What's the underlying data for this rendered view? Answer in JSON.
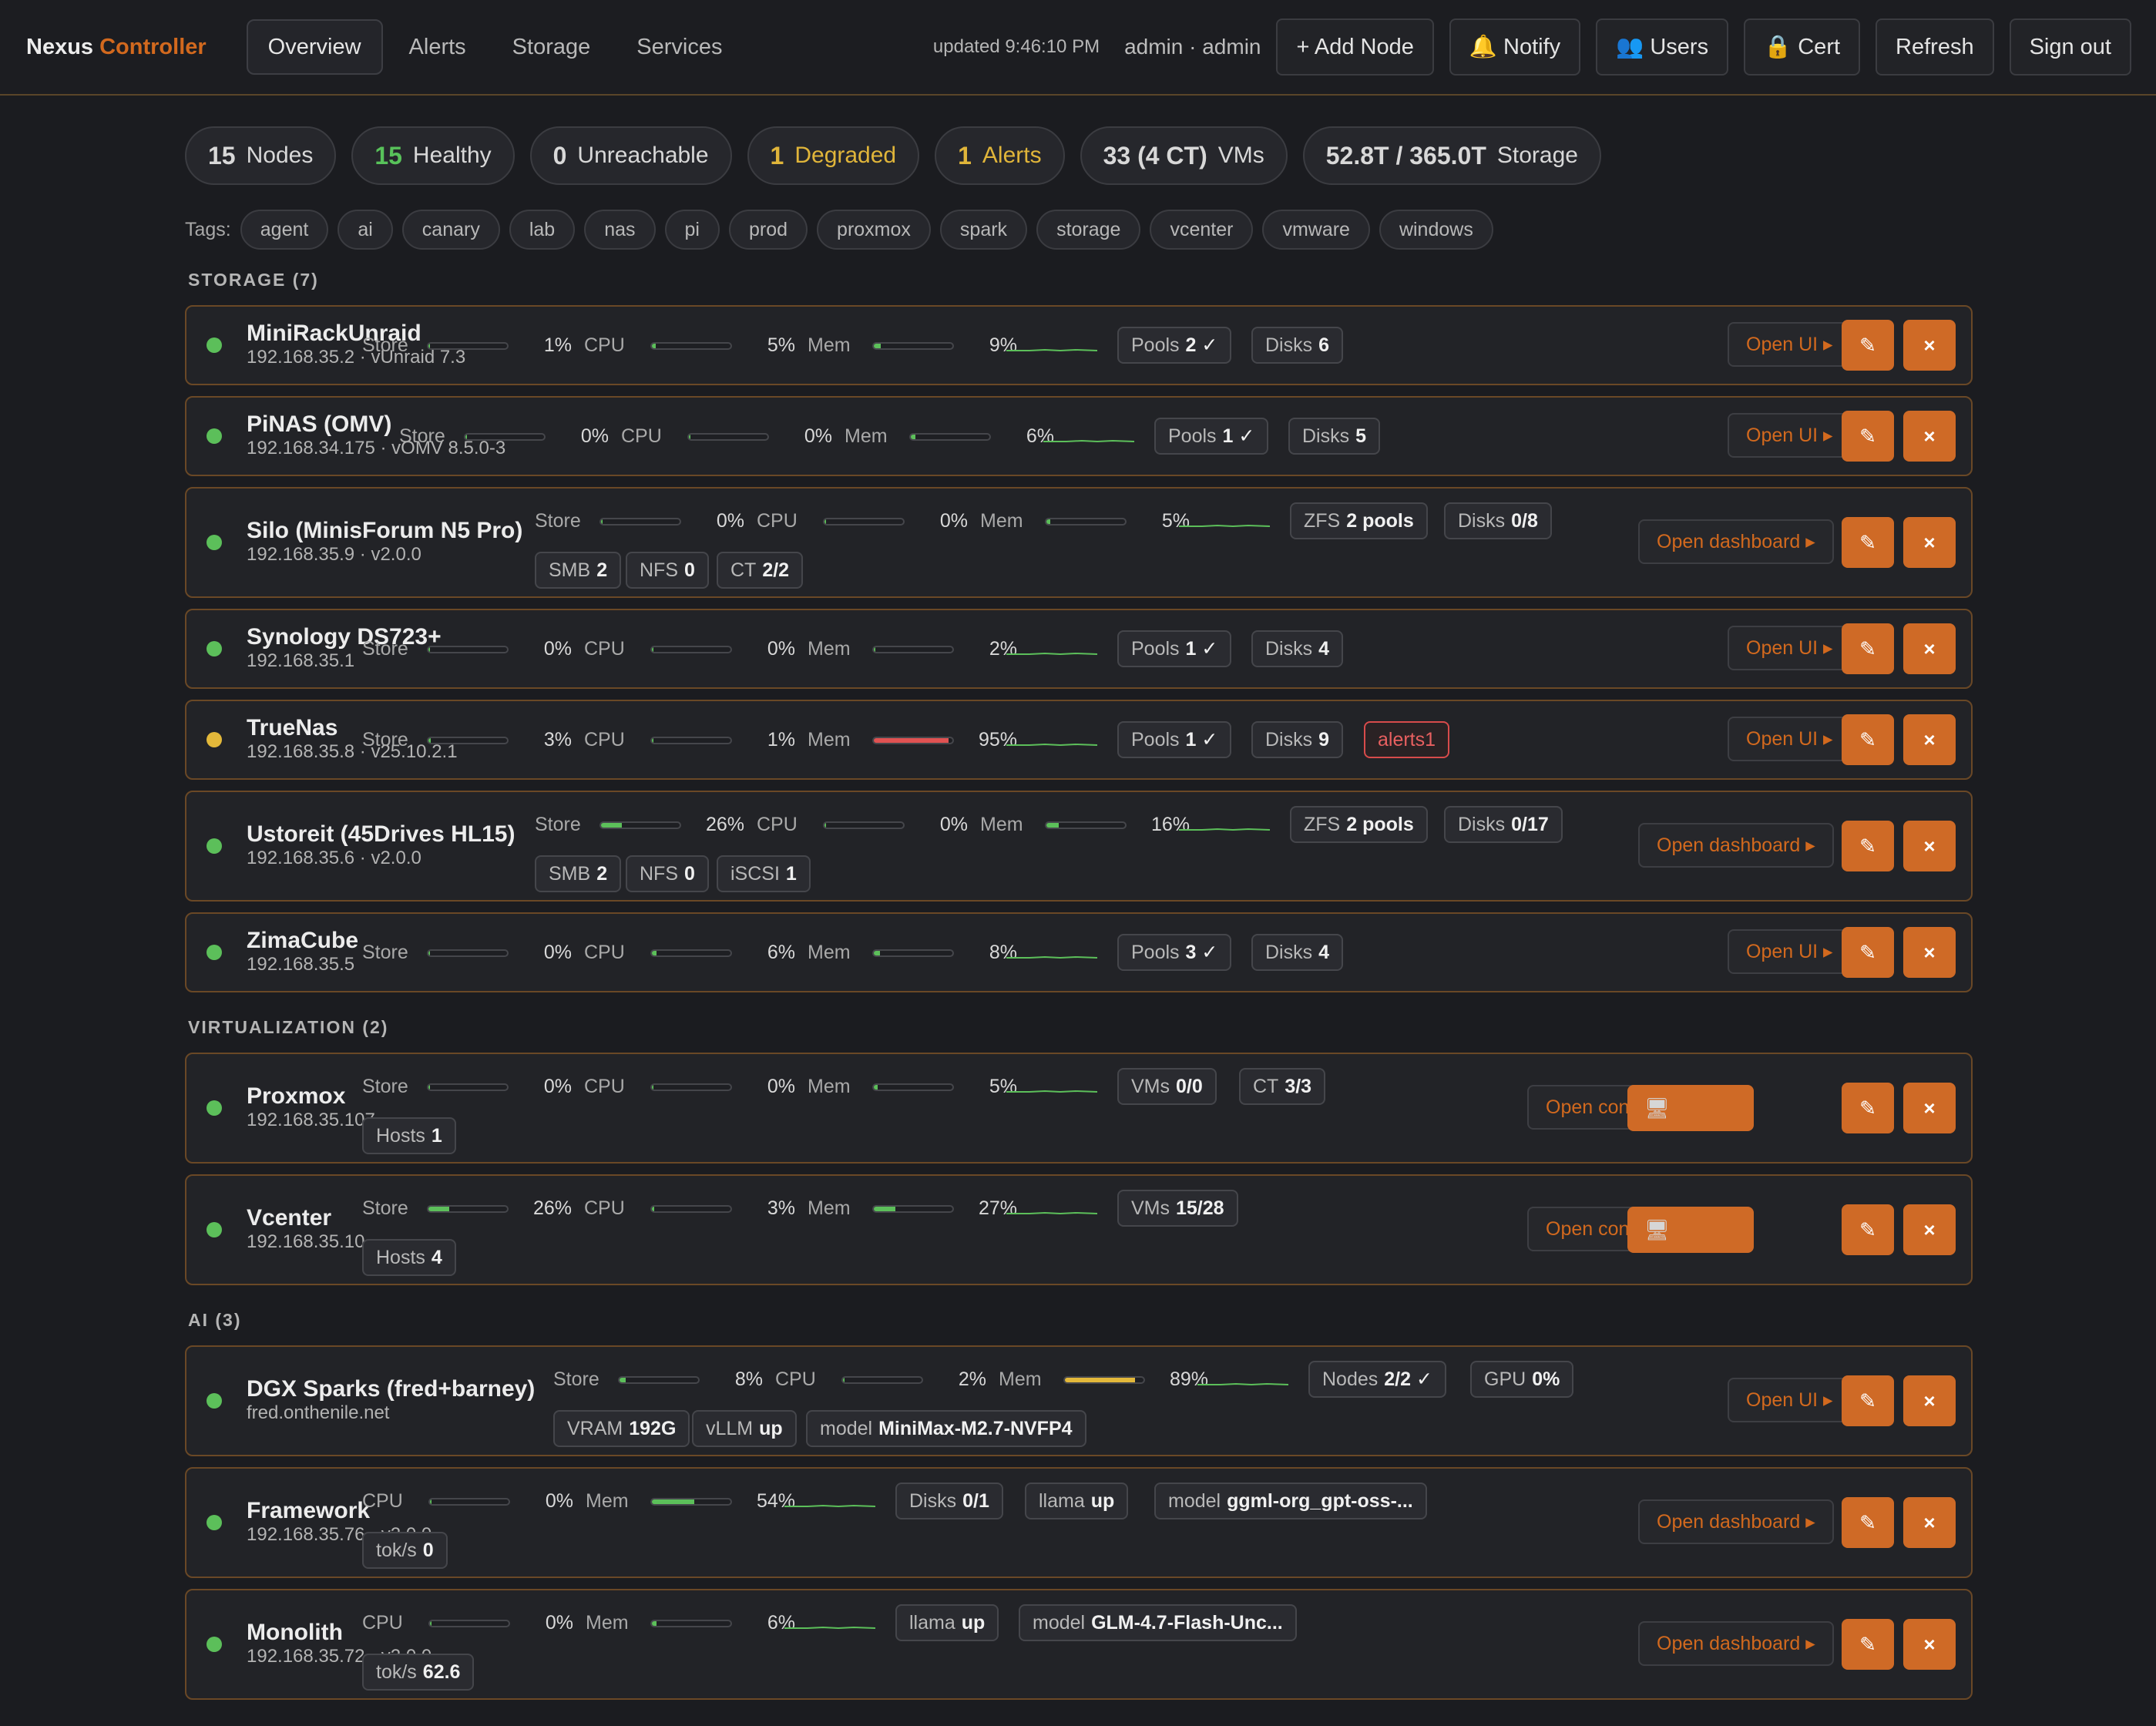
{
  "header": {
    "brand_a": "Nexus",
    "brand_b": "Controller",
    "tabs": [
      "Overview",
      "Alerts",
      "Storage",
      "Services"
    ],
    "updated": "updated 9:46:10 PM",
    "user": "admin · admin",
    "buttons": [
      "+ Add Node",
      "🔔 Notify",
      "👥 Users",
      "🔒 Cert",
      "Refresh",
      "Sign out"
    ]
  },
  "summary": [
    {
      "value": "15",
      "label": "Nodes",
      "tone": "default"
    },
    {
      "value": "15",
      "label": "Healthy",
      "tone": "green"
    },
    {
      "value": "0",
      "label": "Unreachable",
      "tone": "default"
    },
    {
      "value": "1",
      "label": "Degraded",
      "tone": "yellow"
    },
    {
      "value": "1",
      "label": "Alerts",
      "tone": "yellow"
    },
    {
      "value": "33 (4 CT)",
      "label": "VMs",
      "tone": "default"
    },
    {
      "value": "52.8T / 365.0T",
      "label": "Storage",
      "tone": "default"
    }
  ],
  "tags_label": "Tags:",
  "tags": [
    "agent",
    "ai",
    "canary",
    "lab",
    "nas",
    "pi",
    "prod",
    "proxmox",
    "spark",
    "storage",
    "vcenter",
    "vmware",
    "windows"
  ],
  "sections": [
    "STORAGE (7)",
    "VIRTUALIZATION (2)",
    "AI (3)"
  ],
  "metric_labels": {
    "store": "Store",
    "cpu": "CPU",
    "mem": "Mem"
  },
  "action_icons": {
    "edit": "✎",
    "delete": "×",
    "console": "🖥"
  },
  "colors": {
    "accent": "#d2691e",
    "ok": "#5cbf5a",
    "warn": "#e3b83a",
    "bad": "#e05252"
  },
  "nodes": [
    {
      "name": "MiniRackUnraid",
      "sub": "192.168.35.2 · vUnraid 7.3",
      "status": "ok",
      "store": "1%",
      "cpu": "5%",
      "mem": "9%",
      "badges": [
        {
          "label": "Pools",
          "value": "2 ✓"
        },
        {
          "label": "Disks",
          "value": "6"
        }
      ],
      "open": "Open UI ▸"
    },
    {
      "name": "PiNAS (OMV)",
      "sub": "192.168.34.175 · vOMV 8.5.0-3",
      "status": "ok",
      "store": "0%",
      "cpu": "0%",
      "mem": "6%",
      "badges": [
        {
          "label": "Pools",
          "value": "1 ✓"
        },
        {
          "label": "Disks",
          "value": "5"
        }
      ],
      "open": "Open UI ▸"
    },
    {
      "name": "Silo (MinisForum N5 Pro)",
      "sub": "192.168.35.9 · v2.0.0",
      "status": "ok",
      "store": "0%",
      "cpu": "0%",
      "mem": "5%",
      "badges": [
        {
          "label": "ZFS",
          "value": "2 pools"
        },
        {
          "label": "Disks",
          "value": "0/8"
        }
      ],
      "badges2": [
        {
          "label": "SMB",
          "value": "2"
        },
        {
          "label": "NFS",
          "value": "0"
        },
        {
          "label": "CT",
          "value": "2/2"
        }
      ],
      "open": "Open dashboard ▸"
    },
    {
      "name": "Synology DS723+",
      "sub": "192.168.35.1",
      "status": "ok",
      "store": "0%",
      "cpu": "0%",
      "mem": "2%",
      "badges": [
        {
          "label": "Pools",
          "value": "1 ✓"
        },
        {
          "label": "Disks",
          "value": "4"
        }
      ],
      "open": "Open UI ▸"
    },
    {
      "name": "TrueNas",
      "sub": "192.168.35.8 · v25.10.2.1",
      "status": "warn",
      "store": "3%",
      "cpu": "1%",
      "mem": "95%",
      "badges": [
        {
          "label": "Pools",
          "value": "1 ✓"
        },
        {
          "label": "Disks",
          "value": "9"
        },
        {
          "label": "alerts",
          "value": "1"
        }
      ],
      "open": "Open UI ▸"
    },
    {
      "name": "Ustoreit (45Drives HL15)",
      "sub": "192.168.35.6 · v2.0.0",
      "status": "ok",
      "store": "26%",
      "cpu": "0%",
      "mem": "16%",
      "badges": [
        {
          "label": "ZFS",
          "value": "2 pools"
        },
        {
          "label": "Disks",
          "value": "0/17"
        }
      ],
      "badges2": [
        {
          "label": "SMB",
          "value": "2"
        },
        {
          "label": "NFS",
          "value": "0"
        },
        {
          "label": "iSCSI",
          "value": "1"
        }
      ],
      "open": "Open dashboard ▸"
    },
    {
      "name": "ZimaCube",
      "sub": "192.168.35.5",
      "status": "ok",
      "store": "0%",
      "cpu": "6%",
      "mem": "8%",
      "badges": [
        {
          "label": "Pools",
          "value": "3 ✓"
        },
        {
          "label": "Disks",
          "value": "4"
        }
      ],
      "open": "Open UI ▸"
    },
    {
      "name": "Proxmox",
      "sub": "192.168.35.107",
      "status": "ok",
      "store": "0%",
      "cpu": "0%",
      "mem": "5%",
      "badges": [
        {
          "label": "VMs",
          "value": "0/0"
        },
        {
          "label": "CT",
          "value": "3/3"
        }
      ],
      "badges2": [
        {
          "label": "Hosts",
          "value": "1"
        }
      ],
      "open": "Open console ▸"
    },
    {
      "name": "Vcenter",
      "sub": "192.168.35.10",
      "status": "ok",
      "store": "26%",
      "cpu": "3%",
      "mem": "27%",
      "badges": [
        {
          "label": "VMs",
          "value": "15/28"
        }
      ],
      "badges2": [
        {
          "label": "Hosts",
          "value": "4"
        }
      ],
      "open": "Open console ▸"
    },
    {
      "name": "DGX Sparks (fred+barney)",
      "sub": "fred.onthenile.net",
      "status": "ok",
      "store": "8%",
      "cpu": "2%",
      "mem": "89%",
      "badges": [
        {
          "label": "Nodes",
          "value": "2/2 ✓"
        },
        {
          "label": "GPU",
          "value": "0%"
        }
      ],
      "badges2": [
        {
          "label": "VRAM",
          "value": "192G"
        },
        {
          "label": "vLLM",
          "value": "up"
        },
        {
          "label": "model",
          "value": "MiniMax-M2.7-NVFP4"
        }
      ],
      "open": "Open UI ▸"
    },
    {
      "name": "Framework",
      "sub": "192.168.35.76 · v2.0.0",
      "status": "ok",
      "cpu": "0%",
      "mem": "54%",
      "badges": [
        {
          "label": "Disks",
          "value": "0/1"
        },
        {
          "label": "llama",
          "value": "up"
        },
        {
          "label": "model",
          "value": "ggml-org_gpt-oss-..."
        }
      ],
      "badges2": [
        {
          "label": "tok/s",
          "value": "0"
        }
      ],
      "open": "Open dashboard ▸"
    },
    {
      "name": "Monolith",
      "sub": "192.168.35.72 · v2.0.0",
      "status": "ok",
      "cpu": "0%",
      "mem": "6%",
      "badges": [
        {
          "label": "llama",
          "value": "up"
        },
        {
          "label": "model",
          "value": "GLM-4.7-Flash-Unc..."
        }
      ],
      "badges2": [
        {
          "label": "tok/s",
          "value": "62.6"
        }
      ],
      "open": "Open dashboard ▸"
    }
  ]
}
